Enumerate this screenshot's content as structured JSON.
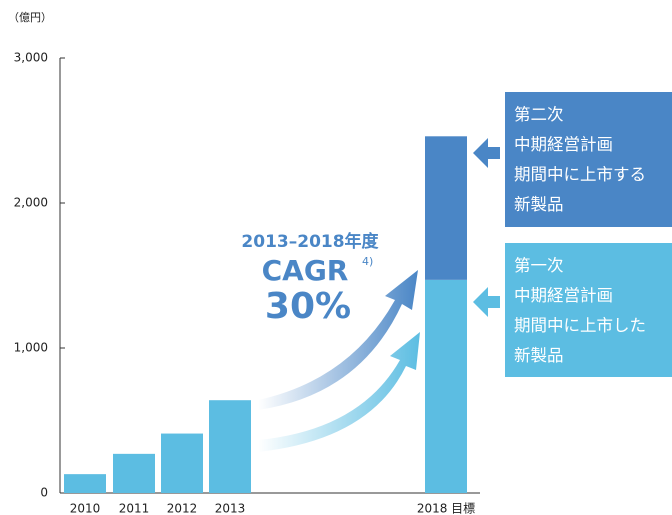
{
  "chart_data": {
    "type": "bar",
    "stacked": true,
    "y_unit": "（億円）",
    "categories": [
      "2010",
      "2011",
      "2012",
      "2013",
      "2018 目標"
    ],
    "series": [
      {
        "name": "第一次\n中期経営計画\n期間中に上市した\n新製品",
        "color": "#5cbde2",
        "values": [
          130,
          270,
          410,
          640,
          1470
        ]
      },
      {
        "name": "第二次\n中期経営計画\n期間中に上市する\n新製品",
        "color": "#4a86c6",
        "values": [
          null,
          null,
          null,
          null,
          990
        ]
      }
    ],
    "ylim": [
      0,
      3000
    ],
    "yticks": [
      0,
      {
        "value": 1000,
        "label": "1,000"
      },
      {
        "value": 2000,
        "label": "2,000"
      },
      {
        "value": 3000,
        "label": "3,000"
      }
    ],
    "annotation": {
      "period": "2013–2018年度",
      "metric": "CAGR",
      "note": "4)",
      "value": "30%"
    }
  }
}
